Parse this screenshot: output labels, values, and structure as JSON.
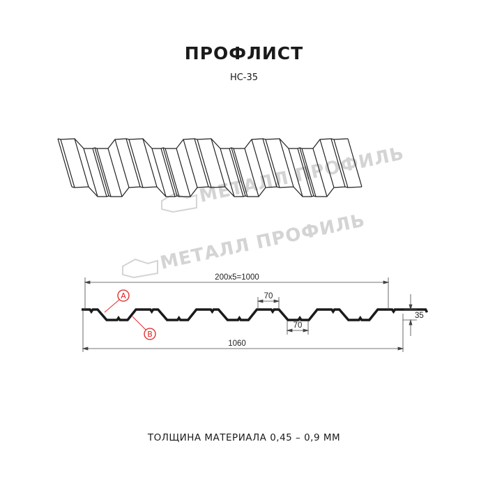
{
  "title": "ПРОФЛИСТ",
  "subtitle": "НС-35",
  "watermark": "МЕТАЛЛ ПРОФИЛЬ",
  "dimensions": {
    "pitch_total": "200x5=1000",
    "overall_width": "1060",
    "height": "35",
    "crest_width": "70",
    "trough_width": "70"
  },
  "markers": {
    "a": "A",
    "b": "B"
  },
  "footer": "ТОЛЩИНА МАТЕРИАЛА 0,45 – 0,9 ММ",
  "colors": {
    "profile": "#1a1a1a",
    "marker": "#e02020",
    "watermark": "#d4d4d4"
  }
}
